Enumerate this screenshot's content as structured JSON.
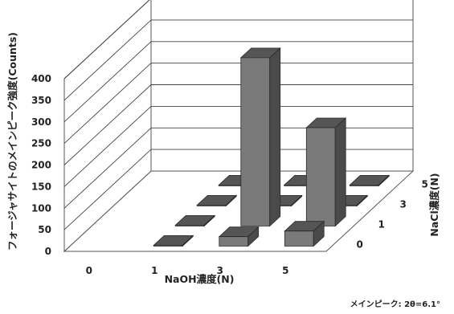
{
  "chart_data": {
    "type": "bar3d",
    "title": "",
    "ylabel": "フォージャサイトのメインピーク強度(Counts)",
    "xlabel": "NaOH濃度(N)",
    "zlabel": "NaCl濃度(N)",
    "x_categories": [
      "0",
      "1",
      "3",
      "5"
    ],
    "z_categories": [
      "0",
      "1",
      "3",
      "5"
    ],
    "y_ticks": [
      "0",
      "50",
      "100",
      "150",
      "200",
      "250",
      "300",
      "350",
      "400"
    ],
    "ylim": [
      0,
      400
    ],
    "grid": true,
    "bar_color": "#7a7a7a",
    "annotation": "メインピーク: 2θ=6.1°",
    "bars": [
      {
        "naoh": "1",
        "nacl": "0",
        "value": 2
      },
      {
        "naoh": "1",
        "nacl": "1",
        "value": 2
      },
      {
        "naoh": "1",
        "nacl": "3",
        "value": 2
      },
      {
        "naoh": "1",
        "nacl": "5",
        "value": 2
      },
      {
        "naoh": "3",
        "nacl": "0",
        "value": 22
      },
      {
        "naoh": "3",
        "nacl": "1",
        "value": 390
      },
      {
        "naoh": "3",
        "nacl": "3",
        "value": 2
      },
      {
        "naoh": "3",
        "nacl": "5",
        "value": 2
      },
      {
        "naoh": "5",
        "nacl": "0",
        "value": 35
      },
      {
        "naoh": "5",
        "nacl": "1",
        "value": 228
      },
      {
        "naoh": "5",
        "nacl": "3",
        "value": 2
      },
      {
        "naoh": "5",
        "nacl": "5",
        "value": 2
      }
    ]
  }
}
